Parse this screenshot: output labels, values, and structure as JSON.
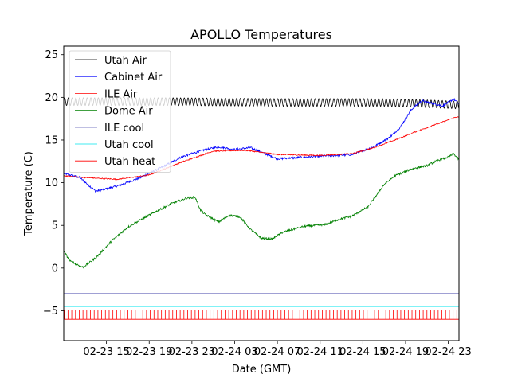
{
  "chart_data": {
    "type": "line",
    "title": "APOLLO Temperatures",
    "xlabel": "Date (GMT)",
    "ylabel": "Temperature (C)",
    "xlim_hours": [
      0,
      37
    ],
    "ylim": [
      -8.5,
      26
    ],
    "x_unit": "hours since 02-23 11:00 GMT",
    "x_ticks": [
      {
        "hours": 4,
        "label": "02-23 15"
      },
      {
        "hours": 8,
        "label": "02-23 19"
      },
      {
        "hours": 12,
        "label": "02-23 23"
      },
      {
        "hours": 16,
        "label": "02-24 03"
      },
      {
        "hours": 20,
        "label": "02-24 07"
      },
      {
        "hours": 24,
        "label": "02-24 11"
      },
      {
        "hours": 28,
        "label": "02-24 15"
      },
      {
        "hours": 32,
        "label": "02-24 19"
      },
      {
        "hours": 36,
        "label": "02-24 23"
      }
    ],
    "y_ticks": [
      -5,
      0,
      5,
      10,
      15,
      20,
      25
    ],
    "legend_position": "upper-left",
    "series": [
      {
        "name": "Utah Air",
        "color": "#000000",
        "style": "oscillating",
        "amplitude": 0.45,
        "period_hours": 0.35,
        "x": [
          0,
          10,
          20,
          30,
          33,
          37
        ],
        "values": [
          19.5,
          19.5,
          19.4,
          19.4,
          19.3,
          19.1
        ]
      },
      {
        "name": "Cabinet Air",
        "color": "#0000ff",
        "style": "noisy",
        "noise": 0.12,
        "x": [
          0,
          1.5,
          3,
          5,
          7,
          9,
          11,
          13,
          14.5,
          16,
          17.5,
          20,
          24,
          27,
          29,
          30.5,
          31.5,
          32.5,
          33.5,
          34.5,
          35.5,
          36.5,
          37
        ],
        "values": [
          11.1,
          10.6,
          9.0,
          9.6,
          10.5,
          11.7,
          13.0,
          13.8,
          14.2,
          13.9,
          14.1,
          12.8,
          13.1,
          13.3,
          14.2,
          15.3,
          16.5,
          18.5,
          19.6,
          19.3,
          19.0,
          19.8,
          19.2
        ]
      },
      {
        "name": "ILE Air",
        "color": "#ff0000",
        "style": "noisy",
        "noise": 0.06,
        "x": [
          0,
          2,
          5,
          8,
          11,
          14,
          17,
          20,
          24,
          27,
          29,
          31,
          33,
          35,
          36.5,
          37
        ],
        "values": [
          10.8,
          10.6,
          10.4,
          10.9,
          12.4,
          13.7,
          13.8,
          13.3,
          13.2,
          13.4,
          14.1,
          15.0,
          16.0,
          16.9,
          17.6,
          17.7
        ]
      },
      {
        "name": "Dome Air",
        "color": "#008000",
        "style": "noisy",
        "noise": 0.12,
        "x": [
          0,
          0.6,
          1.8,
          3.0,
          4.5,
          6.0,
          8.0,
          10.0,
          11.5,
          12.3,
          12.8,
          13.2,
          14.5,
          15.5,
          16.5,
          17.5,
          18.5,
          19.5,
          20.5,
          22.5,
          24.5,
          25.5,
          27,
          28.5,
          30,
          31,
          32.5,
          34,
          35,
          36,
          36.5,
          37
        ],
        "values": [
          2.0,
          0.8,
          0.1,
          1.2,
          3.2,
          4.8,
          6.2,
          7.5,
          8.2,
          8.3,
          6.8,
          6.3,
          5.4,
          6.2,
          6.0,
          4.5,
          3.5,
          3.4,
          4.2,
          4.9,
          5.1,
          5.6,
          6.1,
          7.2,
          9.8,
          10.8,
          11.6,
          12.0,
          12.6,
          13.0,
          13.4,
          12.7
        ]
      },
      {
        "name": "ILE cool",
        "color": "#00008b",
        "style": "flat",
        "x": [
          0,
          37
        ],
        "values": [
          -3.0,
          -3.0
        ]
      },
      {
        "name": "Utah cool",
        "color": "#00e5ee",
        "style": "flat",
        "x": [
          0,
          37
        ],
        "values": [
          -4.5,
          -4.5
        ]
      },
      {
        "name": "Utah heat",
        "color": "#ff0000",
        "style": "pulses",
        "base": -6.0,
        "pulse_top": -4.9,
        "pulse_every_hours": 0.35,
        "x": [
          0,
          37
        ],
        "values": [
          -6.0,
          -6.0
        ]
      }
    ]
  }
}
